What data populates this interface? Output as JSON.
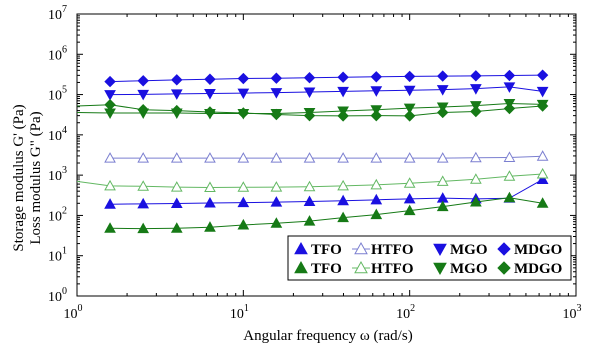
{
  "chart_data": {
    "type": "line",
    "xlabel": "Angular frequency ω (rad/s)",
    "ylabel_storage": "Storage modulus G' (Pa)",
    "ylabel_loss": "Loss modulus G\" (Pa)",
    "xscale": "log",
    "yscale": "log",
    "xlim": [
      1,
      1000
    ],
    "ylim": [
      1,
      10000000
    ],
    "x_ticks": [
      {
        "value": 1,
        "base": "10",
        "exp": "0"
      },
      {
        "value": 10,
        "base": "10",
        "exp": "1"
      },
      {
        "value": 100,
        "base": "10",
        "exp": "2"
      },
      {
        "value": 1000,
        "base": "10",
        "exp": "3"
      }
    ],
    "y_ticks": [
      {
        "value": 1,
        "base": "10",
        "exp": "0"
      },
      {
        "value": 10,
        "base": "10",
        "exp": "1"
      },
      {
        "value": 100,
        "base": "10",
        "exp": "2"
      },
      {
        "value": 1000,
        "base": "10",
        "exp": "3"
      },
      {
        "value": 10000,
        "base": "10",
        "exp": "4"
      },
      {
        "value": 100000,
        "base": "10",
        "exp": "5"
      },
      {
        "value": 1000000,
        "base": "10",
        "exp": "6"
      },
      {
        "value": 10000000,
        "base": "10",
        "exp": "7"
      }
    ],
    "legend_position": "bottom-right",
    "x": [
      1.58,
      2.5,
      3.98,
      6.3,
      10,
      15.8,
      25,
      39.8,
      63,
      100,
      158,
      250,
      398,
      630
    ],
    "series": [
      {
        "name": "TFO",
        "group": "storage",
        "color": "#1a10e0",
        "marker": "triangle-up",
        "filled": true,
        "values": [
          190,
          193,
          198,
          203,
          208,
          214,
          222,
          232,
          244,
          258,
          268,
          258,
          268,
          780
        ]
      },
      {
        "name": "HTFO",
        "group": "storage",
        "color": "#7b7fd0",
        "marker": "triangle-up",
        "filled": false,
        "values": [
          2650,
          2650,
          2650,
          2650,
          2650,
          2650,
          2650,
          2650,
          2650,
          2650,
          2650,
          2700,
          2750,
          2950
        ]
      },
      {
        "name": "MGO",
        "group": "storage",
        "color": "#1a10e0",
        "marker": "triangle-down",
        "filled": true,
        "values": [
          100000,
          101000,
          104000,
          106000,
          109000,
          112000,
          116000,
          120000,
          124000,
          128000,
          133000,
          140000,
          155000,
          120000
        ]
      },
      {
        "name": "MDGO",
        "group": "storage",
        "color": "#1a10e0",
        "marker": "diamond",
        "filled": true,
        "values": [
          210000,
          220000,
          232000,
          240000,
          250000,
          255000,
          262000,
          270000,
          276000,
          282000,
          288000,
          292000,
          297000,
          303000
        ]
      },
      {
        "name": "TFO",
        "group": "loss",
        "color": "#167a16",
        "marker": "triangle-up",
        "filled": true,
        "values": [
          48,
          47,
          48,
          51,
          58,
          64,
          72,
          88,
          105,
          132,
          165,
          215,
          275,
          200
        ]
      },
      {
        "name": "HTFO",
        "group": "loss",
        "color": "#63b863",
        "marker": "triangle-up",
        "filled": false,
        "values": [
          540,
          530,
          505,
          495,
          500,
          505,
          515,
          540,
          575,
          630,
          700,
          790,
          940,
          1070
        ]
      },
      {
        "name": "MGO",
        "group": "loss",
        "color": "#167a16",
        "marker": "triangle-down",
        "filled": true,
        "values": [
          35000,
          35000,
          35000,
          34000,
          34000,
          34000,
          36000,
          39000,
          42000,
          46000,
          49000,
          53000,
          60000,
          57000
        ]
      },
      {
        "name": "MDGO",
        "group": "loss",
        "color": "#167a16",
        "marker": "diamond",
        "filled": true,
        "values": [
          56000,
          42000,
          40000,
          37000,
          35000,
          32000,
          30000,
          29500,
          30000,
          29500,
          36000,
          38000,
          45000,
          52000
        ]
      }
    ],
    "lead_in": [
      {
        "series": 6,
        "x": 1,
        "value": 36000
      },
      {
        "series": 7,
        "x": 1,
        "value": 52000
      },
      {
        "series": 5,
        "x": 1,
        "value": 700
      }
    ]
  },
  "colors": {
    "blue_label": "#1a8fd6",
    "green_label": "#1a9a3a"
  }
}
